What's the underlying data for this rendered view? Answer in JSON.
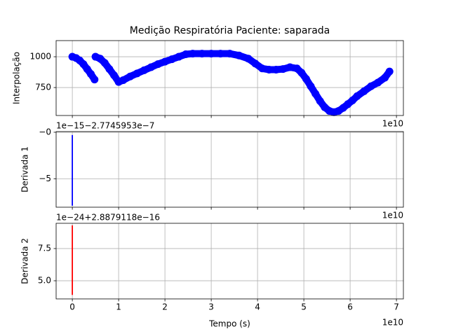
{
  "chart_data": [
    {
      "type": "scatter",
      "title": "Medição Respiratória Paciente: saparada",
      "y_label": "Interpolação",
      "x_offset": "1e10",
      "x": [
        0,
        0.08,
        0.16,
        0.24,
        0.32,
        0.4,
        0.48,
        0.49,
        0.5,
        0.6,
        0.7,
        0.8,
        0.9,
        1.0,
        1.1,
        1.25,
        1.4,
        1.55,
        1.7,
        1.85,
        2.0,
        2.15,
        2.3,
        2.45,
        2.6,
        2.8,
        3.0,
        3.2,
        3.4,
        3.6,
        3.8,
        3.95,
        4.1,
        4.25,
        4.4,
        4.55,
        4.7,
        4.85,
        4.95,
        5.05,
        5.15,
        5.25,
        5.35,
        5.45,
        5.55,
        5.65,
        5.75,
        5.85,
        5.95,
        6.05,
        6.15,
        6.3,
        6.45,
        6.6,
        6.75,
        6.85
      ],
      "series": [
        {
          "color": "#0000ff",
          "values": [
            1000,
            990,
            970,
            940,
            900,
            860,
            815,
            null,
            1000,
            985,
            950,
            900,
            850,
            795,
            810,
            840,
            865,
            890,
            915,
            940,
            960,
            980,
            1000,
            1020,
            1025,
            1025,
            1025,
            1025,
            1025,
            1010,
            985,
            945,
            905,
            895,
            895,
            900,
            915,
            905,
            870,
            820,
            760,
            700,
            640,
            590,
            560,
            550,
            560,
            585,
            615,
            645,
            680,
            720,
            760,
            790,
            830,
            880
          ]
        }
      ],
      "xlim": [
        -0.35,
        7.15
      ],
      "ylim": [
        523,
        1131
      ],
      "xticks": [
        0,
        1,
        2,
        3,
        4,
        5,
        6,
        7
      ],
      "yticks": [
        750,
        1000
      ],
      "grid": true
    },
    {
      "type": "line",
      "y_label": "Derivada 1",
      "x_offset": "1e10",
      "y_offset": "1e−15−2.7745953e−7",
      "x": [
        0,
        0
      ],
      "series": [
        {
          "color": "#0000ff",
          "values": [
            -0.3,
            -7.9
          ]
        }
      ],
      "xlim": [
        -0.35,
        7.15
      ],
      "ylim": [
        -8.06,
        0.07
      ],
      "xticks": [
        0,
        1,
        2,
        3,
        4,
        5,
        6,
        7
      ],
      "yticks": [
        {
          "value": 0,
          "label": "−0"
        },
        {
          "value": -5,
          "label": "−5"
        }
      ],
      "grid": true
    },
    {
      "type": "line",
      "y_label": "Derivada 2",
      "x_label": "Tempo (s)",
      "x_offset": "1e10",
      "y_offset": "1e−24+2.8879118e−16",
      "x": [
        0,
        0
      ],
      "series": [
        {
          "color": "#ff0000",
          "values": [
            3.9,
            9.3
          ]
        }
      ],
      "xlim": [
        -0.35,
        7.15
      ],
      "ylim": [
        3.59,
        9.46
      ],
      "xticks": [
        0,
        1,
        2,
        3,
        4,
        5,
        6,
        7
      ],
      "yticks": [
        {
          "value": 5,
          "label": "5.0"
        },
        {
          "value": 7.5,
          "label": "7.5"
        }
      ],
      "grid": true
    }
  ]
}
